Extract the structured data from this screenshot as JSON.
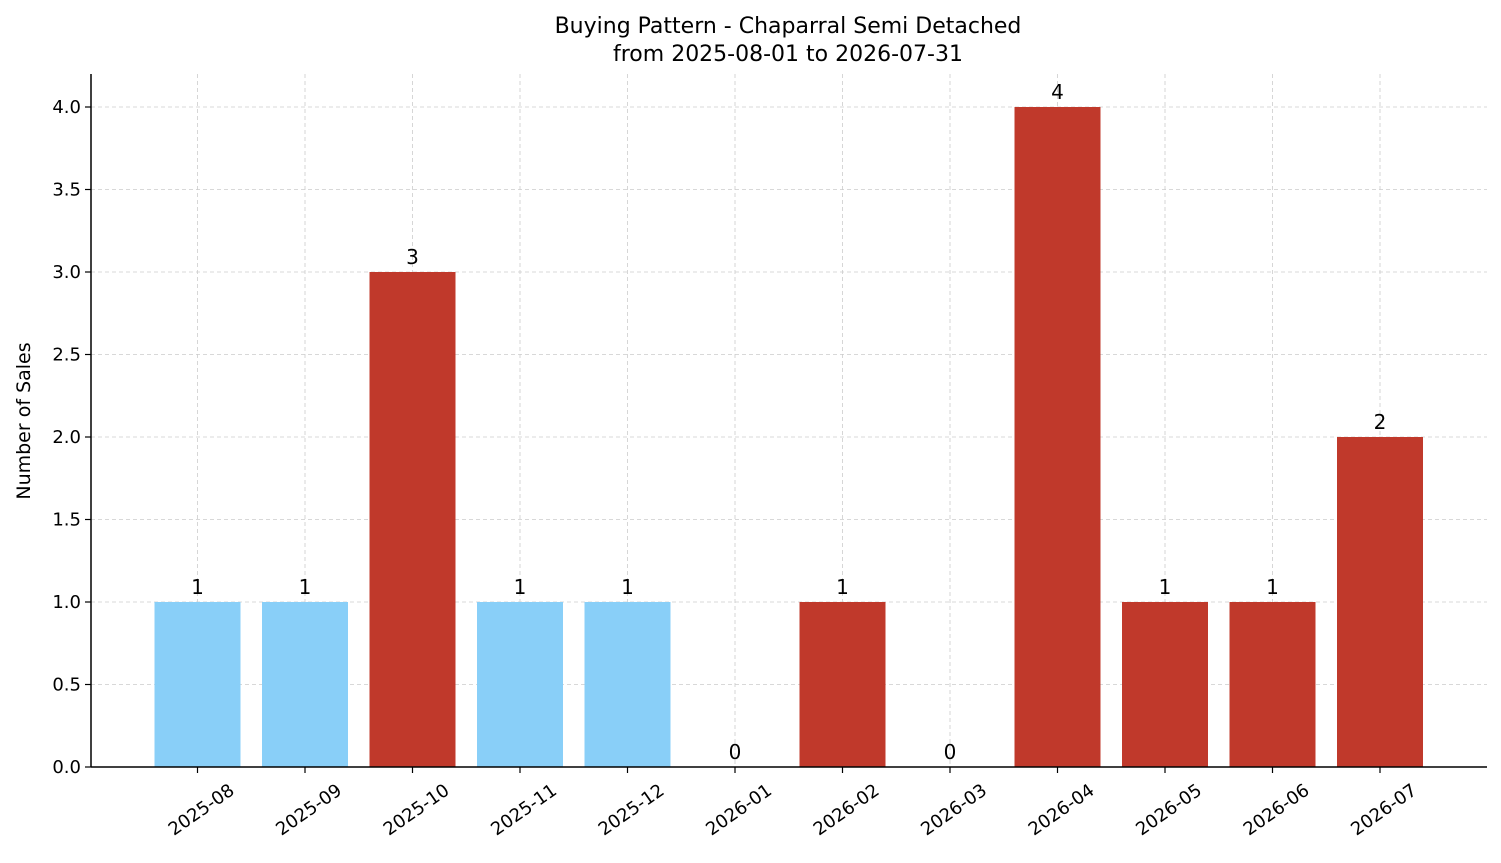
{
  "chart_data": {
    "type": "bar",
    "title": "Buying Pattern - Chaparral Semi Detached",
    "subtitle": "from 2025-08-01 to 2026-07-31",
    "xlabel": "",
    "ylabel": "Number of Sales",
    "categories": [
      "2025-08",
      "2025-09",
      "2025-10",
      "2025-11",
      "2025-12",
      "2026-01",
      "2026-02",
      "2026-03",
      "2026-04",
      "2026-05",
      "2026-06",
      "2026-07"
    ],
    "values": [
      1,
      1,
      3,
      1,
      1,
      0,
      1,
      0,
      4,
      1,
      1,
      2
    ],
    "value_labels": [
      "1",
      "1",
      "3",
      "1",
      "1",
      "0",
      "1",
      "0",
      "4",
      "1",
      "1",
      "2"
    ],
    "bar_colors": [
      "#89CFF8",
      "#89CFF8",
      "#C0392B",
      "#89CFF8",
      "#89CFF8",
      "#C0392B",
      "#C0392B",
      "#C0392B",
      "#C0392B",
      "#C0392B",
      "#C0392B",
      "#C0392B"
    ],
    "ylim": [
      0,
      4.2
    ],
    "yticks": [
      "0.0",
      "0.5",
      "1.0",
      "1.5",
      "2.0",
      "2.5",
      "3.0",
      "3.5",
      "4.0"
    ],
    "grid": true
  }
}
